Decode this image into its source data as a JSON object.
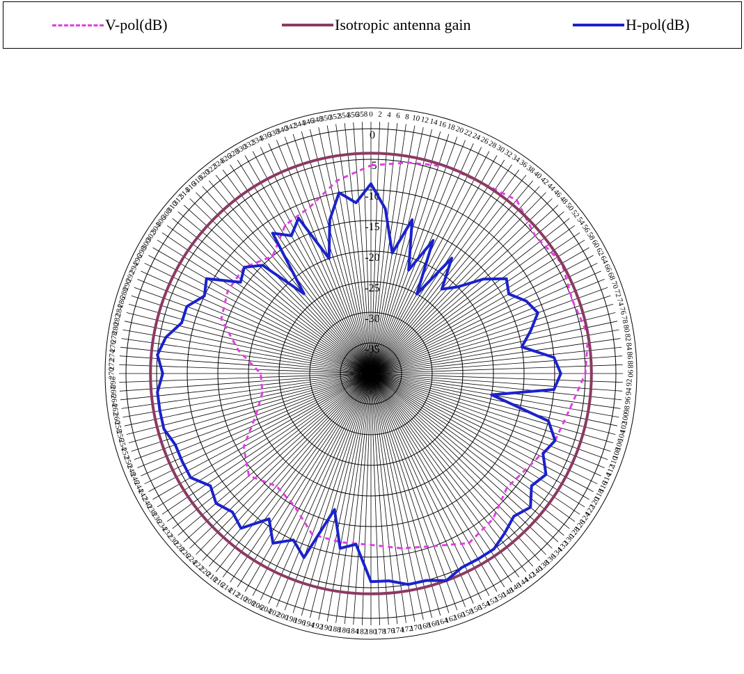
{
  "legend": {
    "items": [
      {
        "label": "V-pol(dB)",
        "color": "#e040e0",
        "style": "dashed"
      },
      {
        "label": "Isotropic antenna gain",
        "color": "#8b3a62",
        "style": "solid"
      },
      {
        "label": "H-pol(dB)",
        "color": "#1a22cc",
        "style": "solid"
      }
    ]
  },
  "chart_data": {
    "type": "line",
    "subtype": "polar",
    "angle_unit": "degrees",
    "angle_direction": "clockwise, 0 at top",
    "angle_tick_step": 2,
    "radial_range": [
      -40,
      0
    ],
    "radial_step": 5,
    "radial_labels": [
      "0",
      "-5",
      "-10",
      "-15",
      "-20",
      "-25",
      "-30",
      "-35",
      "-40"
    ],
    "grid": true,
    "legend_position": "top",
    "series": [
      {
        "name": "V-pol(dB)",
        "color": "#e040e0",
        "dash": true,
        "angles": [
          0,
          10,
          20,
          30,
          40,
          50,
          60,
          70,
          80,
          90,
          100,
          110,
          120,
          130,
          140,
          150,
          160,
          170,
          180,
          190,
          200,
          210,
          220,
          230,
          240,
          250,
          260,
          270,
          280,
          290,
          300,
          310,
          320,
          330,
          340,
          350
        ],
        "values": [
          -6,
          -5,
          -4,
          -4,
          -3,
          -5,
          -4,
          -5,
          -4,
          -5,
          -7,
          -8,
          -10,
          -11,
          -9,
          -8,
          -10,
          -11,
          -12,
          -12,
          -12,
          -15,
          -16,
          -14,
          -16,
          -20,
          -22,
          -22,
          -18,
          -14,
          -13,
          -13,
          -15,
          -12,
          -11,
          -8
        ]
      },
      {
        "name": "Isotropic antenna gain",
        "color": "#8b3a62",
        "dash": false,
        "angles": [
          0,
          360
        ],
        "values": [
          -4,
          -4
        ]
      },
      {
        "name": "H-pol(dB)",
        "color": "#1a22cc",
        "dash": false,
        "angles": [
          0,
          5,
          10,
          15,
          20,
          25,
          30,
          35,
          40,
          45,
          50,
          55,
          60,
          65,
          70,
          75,
          80,
          85,
          90,
          95,
          100,
          105,
          110,
          115,
          120,
          125,
          130,
          135,
          140,
          145,
          150,
          155,
          160,
          165,
          170,
          175,
          180,
          185,
          190,
          195,
          200,
          205,
          210,
          215,
          220,
          225,
          230,
          235,
          240,
          245,
          250,
          255,
          260,
          265,
          270,
          275,
          280,
          285,
          290,
          295,
          300,
          305,
          310,
          315,
          320,
          325,
          330,
          335,
          340,
          345,
          350,
          355
        ],
        "values": [
          -9,
          -13,
          -20,
          -14,
          -22,
          -16,
          -25,
          -17,
          -22,
          -20,
          -16,
          -13,
          -14,
          -12,
          -11,
          -13,
          -15,
          -10,
          -9,
          -10,
          -20,
          -10,
          -8,
          -9,
          -7,
          -8,
          -6,
          -7,
          -6,
          -5,
          -5,
          -5,
          -4,
          -5,
          -5,
          -6,
          -6,
          -12,
          -11,
          -17,
          -8,
          -10,
          -8,
          -11,
          -7,
          -8,
          -7,
          -8,
          -6,
          -6,
          -6,
          -5,
          -5,
          -5,
          -6,
          -5,
          -6,
          -8,
          -8,
          -10,
          -9,
          -14,
          -13,
          -15,
          -23,
          -12,
          -14,
          -12,
          -20,
          -14,
          -10,
          -12
        ]
      }
    ]
  }
}
